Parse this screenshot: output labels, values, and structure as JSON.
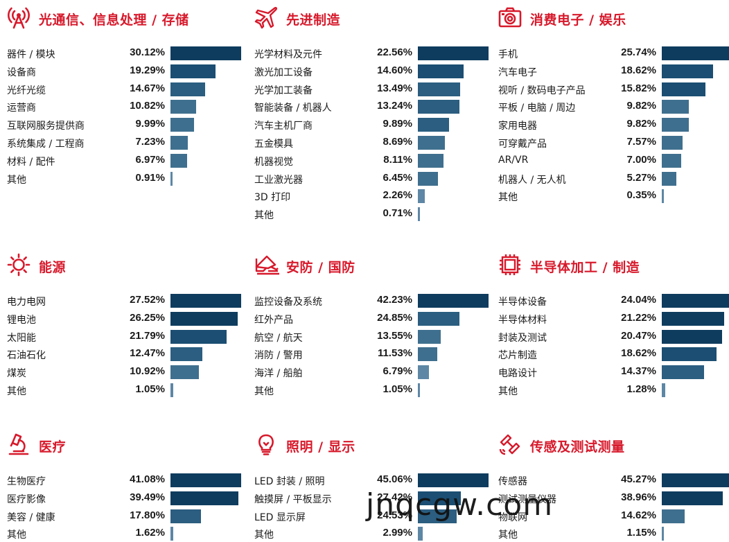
{
  "watermark": "jnqcgw.com",
  "chart_data": [
    {
      "type": "bar",
      "title": "光通信、信息处理 / 存储",
      "icon": "antenna-icon",
      "categories": [
        "器件 / 模块",
        "设备商",
        "光纤光缆",
        "运营商",
        "互联网服务提供商",
        "系统集成 / 工程商",
        "材料 / 配件",
        "其他"
      ],
      "values": [
        30.12,
        19.29,
        14.67,
        10.82,
        9.99,
        7.23,
        6.97,
        0.91
      ],
      "labels": [
        "30.12%",
        "19.29%",
        "14.67%",
        "10.82%",
        "9.99%",
        "7.23%",
        "6.97%",
        "0.91%"
      ]
    },
    {
      "type": "bar",
      "title": "先进制造",
      "icon": "airplane-icon",
      "categories": [
        "光学材料及元件",
        "激光加工设备",
        "光学加工装备",
        "智能装备 / 机器人",
        "汽车主机厂商",
        "五金模具",
        "机器视觉",
        "工业激光器",
        "3D 打印",
        "其他"
      ],
      "values": [
        22.56,
        14.6,
        13.49,
        13.24,
        9.89,
        8.69,
        8.11,
        6.45,
        2.26,
        0.71
      ],
      "labels": [
        "22.56%",
        "14.60%",
        "13.49%",
        "13.24%",
        "9.89%",
        "8.69%",
        "8.11%",
        "6.45%",
        "2.26%",
        "0.71%"
      ]
    },
    {
      "type": "bar",
      "title": "消费电子 / 娱乐",
      "icon": "camera-icon",
      "categories": [
        "手机",
        "汽车电子",
        "视听 / 数码电子产品",
        "平板 / 电脑 / 周边",
        "家用电器",
        "可穿戴产品",
        "AR/VR",
        "机器人 / 无人机",
        "其他"
      ],
      "values": [
        25.74,
        18.62,
        15.82,
        9.82,
        9.82,
        7.57,
        7.0,
        5.27,
        0.35
      ],
      "labels": [
        "25.74%",
        "18.62%",
        "15.82%",
        "9.82%",
        "9.82%",
        "7.57%",
        "7.00%",
        "5.27%",
        "0.35%"
      ]
    },
    {
      "type": "bar",
      "title": "能源",
      "icon": "sun-icon",
      "categories": [
        "电力电网",
        "锂电池",
        "太阳能",
        "石油石化",
        "煤炭",
        "其他"
      ],
      "values": [
        27.52,
        26.25,
        21.79,
        12.47,
        10.92,
        1.05
      ],
      "labels": [
        "27.52%",
        "26.25%",
        "21.79%",
        "12.47%",
        "10.92%",
        "1.05%"
      ]
    },
    {
      "type": "bar",
      "title": "安防 / 国防",
      "icon": "security-camera-icon",
      "categories": [
        "监控设备及系统",
        "红外产品",
        "航空 / 航天",
        "消防 / 警用",
        "海洋 / 船舶",
        "其他"
      ],
      "values": [
        42.23,
        24.85,
        13.55,
        11.53,
        6.79,
        1.05
      ],
      "labels": [
        "42.23%",
        "24.85%",
        "13.55%",
        "11.53%",
        "6.79%",
        "1.05%"
      ]
    },
    {
      "type": "bar",
      "title": "半导体加工 / 制造",
      "icon": "chip-icon",
      "categories": [
        "半导体设备",
        "半导体材料",
        "封装及测试",
        "芯片制造",
        "电路设计",
        "其他"
      ],
      "values": [
        24.04,
        21.22,
        20.47,
        18.62,
        14.37,
        1.28
      ],
      "labels": [
        "24.04%",
        "21.22%",
        "20.47%",
        "18.62%",
        "14.37%",
        "1.28%"
      ]
    },
    {
      "type": "bar",
      "title": "医疗",
      "icon": "microscope-icon",
      "categories": [
        "生物医疗",
        "医疗影像",
        "美容 / 健康",
        "其他"
      ],
      "values": [
        41.08,
        39.49,
        17.8,
        1.62
      ],
      "labels": [
        "41.08%",
        "39.49%",
        "17.80%",
        "1.62%"
      ]
    },
    {
      "type": "bar",
      "title": "照明 / 显示",
      "icon": "lightbulb-icon",
      "categories": [
        "LED 封装 / 照明",
        "触摸屏 / 平板显示",
        "LED 显示屏",
        "其他"
      ],
      "values": [
        45.06,
        27.42,
        24.53,
        2.99
      ],
      "labels": [
        "45.06%",
        "27.42%",
        "24.53%",
        "2.99%"
      ]
    },
    {
      "type": "bar",
      "title": "传感及测试测量",
      "icon": "satellite-icon",
      "categories": [
        "传感器",
        "测试测量仪器",
        "物联网",
        "其他"
      ],
      "values": [
        45.27,
        38.96,
        14.62,
        1.15
      ],
      "labels": [
        "45.27%",
        "38.96%",
        "14.62%",
        "1.15%"
      ]
    }
  ],
  "colors": {
    "title": "#d7192b",
    "icon": "#d7192b",
    "bar_shades": [
      "#0e3c5e",
      "#1b4e72",
      "#2b5e80",
      "#3f6f8e",
      "#5d87a5"
    ]
  }
}
